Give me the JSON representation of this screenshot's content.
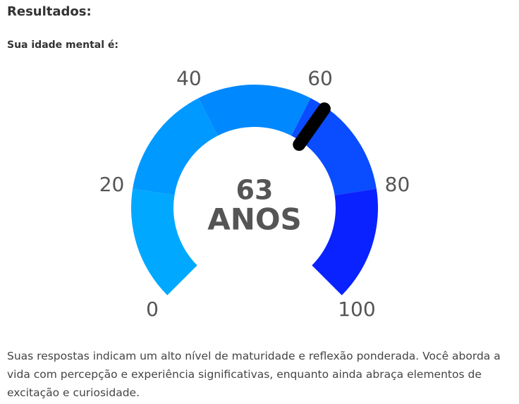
{
  "heading": "Resultados:",
  "subheading": "Sua idade mental é:",
  "chart_data": {
    "type": "gauge",
    "value": 63,
    "unit_label": "ANOS",
    "range": [
      0,
      100
    ],
    "ticks": [
      0,
      20,
      40,
      60,
      80,
      100
    ],
    "needle_color": "#000000",
    "segments": [
      {
        "start": 0,
        "end": 20,
        "color": "#00a8ff"
      },
      {
        "start": 20,
        "end": 40,
        "color": "#0099ff"
      },
      {
        "start": 40,
        "end": 60,
        "color": "#0088ff"
      },
      {
        "start": 60,
        "end": 80,
        "color": "#0a4cff"
      },
      {
        "start": 80,
        "end": 100,
        "color": "#0a22ff"
      }
    ]
  },
  "description": "Suas respostas indicam um alto nível de maturidade e reflexão ponderada. Você aborda a vida com percepção e experiência significativas, enquanto ainda abraça elementos de excitação e curiosidade."
}
